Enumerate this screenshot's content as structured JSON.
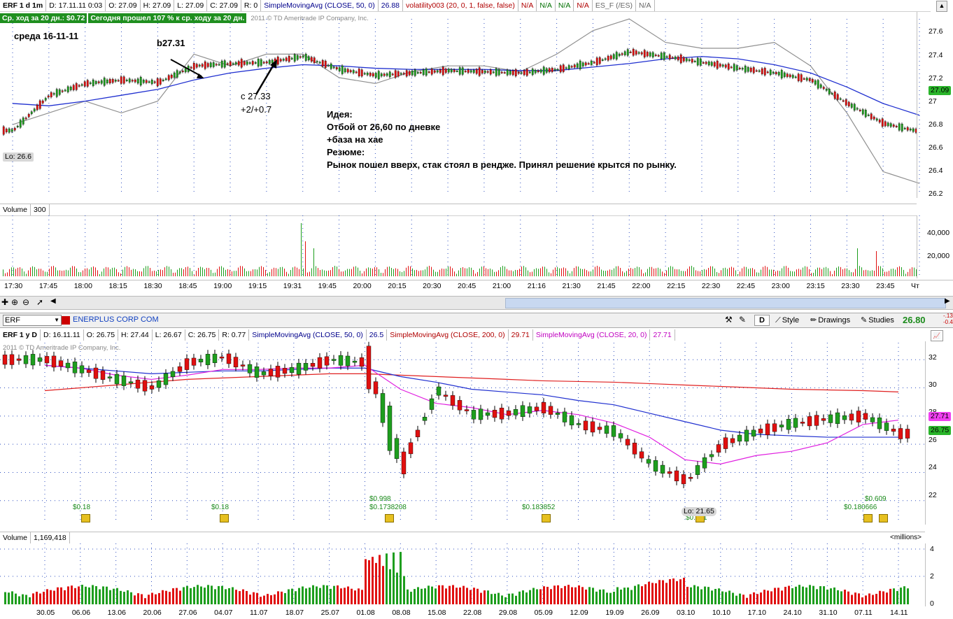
{
  "top_header": {
    "symbol": "ERF 1 d 1m",
    "date": "D: 17.11.11 0:03",
    "open": "O: 27.09",
    "high": "H: 27.09",
    "low": "L: 27.09",
    "close": "C: 27.09",
    "range": "R: 0",
    "sma_label": "SimpleMovingAvg (CLOSE, 50, 0)",
    "sma_value": "26.88",
    "vol_label": "volatility003 (20, 0, 1, false, false)",
    "na1": "N/A",
    "na2": "N/A",
    "na3": "N/A",
    "na4": "N/A",
    "es_label": "ES_F (/ES)",
    "na5": "N/A",
    "avg_move": "Ср. ход за 20 дн.: $0.72",
    "today_move": "Сегодня прошел 107 % к ср. ходу за 20 дн.",
    "copyright": "2011 © TD Ameritrade IP Company, Inc."
  },
  "annotations": {
    "date_note": "среда 16-11-11",
    "buy": "b27.31",
    "sell_1": "с 27.33",
    "sell_2": "+2/+0.7",
    "idea": [
      "Идея:",
      "Отбой от 26,60 по дневке",
      "+база на хае",
      "Резюме:",
      "Рынок пошел вверх, стак стоял в рендже. Принял решение крытся по рынку."
    ],
    "lo_top": "Lo: 26.6"
  },
  "top_price_axis": {
    "labels": [
      "27.6",
      "27.4",
      "27.2",
      "27",
      "26.8",
      "26.6",
      "26.4",
      "26.2"
    ],
    "current": "27.09"
  },
  "top_volume": {
    "label": "Volume",
    "value": "300",
    "axis": [
      "40,000",
      "20,000"
    ]
  },
  "top_time_axis": [
    "17:30",
    "17:45",
    "18:00",
    "18:15",
    "18:30",
    "18:45",
    "19:00",
    "19:15",
    "19:31",
    "19:45",
    "20:00",
    "20:15",
    "20:30",
    "20:45",
    "21:00",
    "21:16",
    "21:30",
    "21:45",
    "22:00",
    "22:15",
    "22:30",
    "22:45",
    "23:00",
    "23:15",
    "23:30",
    "23:45",
    "Чт"
  ],
  "bottom_toolbar": {
    "symbol": "ERF",
    "company": "ENERPLUS CORP COM",
    "style": "Style",
    "drawings": "Drawings",
    "studies": "Studies",
    "price": "26.80",
    "change1": "-.13",
    "change2": "-0.4",
    "d_button": "D"
  },
  "bottom_header": {
    "symbol": "ERF 1 y D",
    "date": "D: 16.11.11",
    "open": "O: 26.75",
    "high": "H: 27.44",
    "low": "L: 26.67",
    "close": "C: 26.75",
    "range": "R: 0.77",
    "sma50_label": "SimpleMovingAvg (CLOSE, 50, 0)",
    "sma50_value": "26.5",
    "sma200_label": "SimpleMovingAvg (CLOSE, 200, 0)",
    "sma200_value": "29.71",
    "sma20_label": "SimpleMovingAvg (CLOSE, 20, 0)",
    "sma20_value": "27.71",
    "copyright": "2011 © TD Ameritrade IP Company, Inc."
  },
  "bottom_price_axis": {
    "labels": [
      "32",
      "30",
      "28",
      "26",
      "24",
      "22"
    ],
    "marker_sma20": "27.71",
    "marker_price": "26.75"
  },
  "dividends": [
    "$0.18",
    "$0.18",
    "$0.998",
    "$0.1738208",
    "$0.183852",
    "$0.171",
    "$0.609",
    "$0.180666"
  ],
  "lo_bottom": "Lo: 21.65",
  "bottom_volume": {
    "label": "Volume",
    "value": "1,169,418",
    "unit": "<millions>",
    "axis": [
      "4",
      "2",
      "0"
    ]
  },
  "bottom_time_axis": [
    "30.05",
    "06.06",
    "13.06",
    "20.06",
    "27.06",
    "04.07",
    "11.07",
    "18.07",
    "25.07",
    "01.08",
    "08.08",
    "15.08",
    "22.08",
    "29.08",
    "05.09",
    "12.09",
    "19.09",
    "26.09",
    "03.10",
    "10.10",
    "17.10",
    "24.10",
    "31.10",
    "07.11",
    "14.11"
  ],
  "colors": {
    "up": "#1e9e1e",
    "down": "#e01010",
    "sma50": "#2030d0",
    "sma200": "#e02020",
    "sma20": "#e020e0",
    "es": "#909090"
  },
  "chart_data": [
    {
      "type": "line",
      "title": "ERF 1 d 1m",
      "ylim": [
        26.2,
        27.7
      ],
      "x": [
        "17:30",
        "17:45",
        "18:00",
        "18:15",
        "18:30",
        "18:45",
        "19:00",
        "19:15",
        "19:31",
        "19:45",
        "20:00",
        "20:15",
        "20:30",
        "20:45",
        "21:00",
        "21:16",
        "21:30",
        "21:45",
        "22:00",
        "22:15",
        "22:30",
        "22:45",
        "23:00",
        "23:15",
        "23:30",
        "23:45"
      ],
      "series": [
        {
          "name": "ERF",
          "values": [
            26.75,
            27.05,
            27.15,
            27.18,
            27.16,
            27.3,
            27.32,
            27.33,
            27.38,
            27.27,
            27.22,
            27.24,
            27.26,
            27.25,
            27.24,
            27.27,
            27.33,
            27.42,
            27.38,
            27.33,
            27.28,
            27.24,
            27.18,
            26.98,
            26.81,
            26.74
          ]
        },
        {
          "name": "SimpleMovingAvg (CLOSE, 50, 0)",
          "values": [
            26.98,
            26.96,
            27.0,
            27.05,
            27.1,
            27.18,
            27.24,
            27.28,
            27.31,
            27.3,
            27.28,
            27.27,
            27.27,
            27.27,
            27.26,
            27.26,
            27.29,
            27.32,
            27.36,
            27.38,
            27.36,
            27.31,
            27.24,
            27.12,
            26.98,
            26.88
          ]
        },
        {
          "name": "ES_F (/ES)",
          "values": [
            26.8,
            26.9,
            27.0,
            26.9,
            27.0,
            27.4,
            27.3,
            27.4,
            27.4,
            27.2,
            27.15,
            27.25,
            27.3,
            27.3,
            27.25,
            27.4,
            27.6,
            27.7,
            27.5,
            27.45,
            27.45,
            27.5,
            27.3,
            26.9,
            26.4,
            26.3
          ]
        }
      ]
    },
    {
      "type": "bar",
      "title": "ERF 1 y D",
      "ylim": [
        20.5,
        33.2
      ],
      "categories": [
        "30.05",
        "06.06",
        "13.06",
        "20.06",
        "27.06",
        "04.07",
        "11.07",
        "18.07",
        "25.07",
        "01.08",
        "08.08",
        "15.08",
        "22.08",
        "29.08",
        "05.09",
        "12.09",
        "19.09",
        "26.09",
        "03.10",
        "10.10",
        "17.10",
        "24.10",
        "31.10",
        "07.11",
        "14.11"
      ],
      "series": [
        {
          "name": "close",
          "values": [
            32.0,
            31.3,
            30.6,
            30.0,
            31.8,
            32.2,
            31.0,
            31.3,
            32.0,
            31.8,
            24.5,
            29.8,
            28.1,
            28.2,
            28.6,
            27.4,
            26.9,
            24.6,
            23.4,
            26.0,
            26.9,
            27.5,
            27.8,
            28.0,
            26.75
          ]
        },
        {
          "name": "SimpleMovingAvg (CLOSE, 50, 0)",
          "values": [
            31.6,
            31.4,
            31.2,
            31.0,
            31.1,
            31.2,
            31.2,
            31.3,
            31.4,
            31.4,
            30.8,
            30.4,
            29.9,
            29.7,
            29.5,
            29.1,
            28.8,
            28.2,
            27.6,
            27.0,
            26.7,
            26.6,
            26.5,
            26.5,
            26.5
          ]
        },
        {
          "name": "SimpleMovingAvg (CLOSE, 200, 0)",
          "values": [
            29.8,
            30.0,
            30.2,
            30.4,
            30.6,
            30.7,
            30.8,
            30.9,
            31.0,
            31.0,
            30.9,
            30.8,
            30.7,
            30.6,
            30.5,
            30.45,
            30.4,
            30.3,
            30.2,
            30.1,
            30.0,
            29.9,
            29.85,
            29.8,
            29.71
          ]
        },
        {
          "name": "SimpleMovingAvg (CLOSE, 20, 0)",
          "values": [
            31.6,
            31.4,
            30.9,
            30.6,
            30.9,
            31.3,
            31.3,
            31.4,
            31.4,
            31.6,
            29.9,
            28.9,
            28.6,
            28.1,
            28.4,
            28.1,
            27.5,
            26.5,
            24.9,
            24.6,
            25.2,
            25.5,
            26.1,
            27.4,
            27.71
          ]
        }
      ]
    }
  ]
}
